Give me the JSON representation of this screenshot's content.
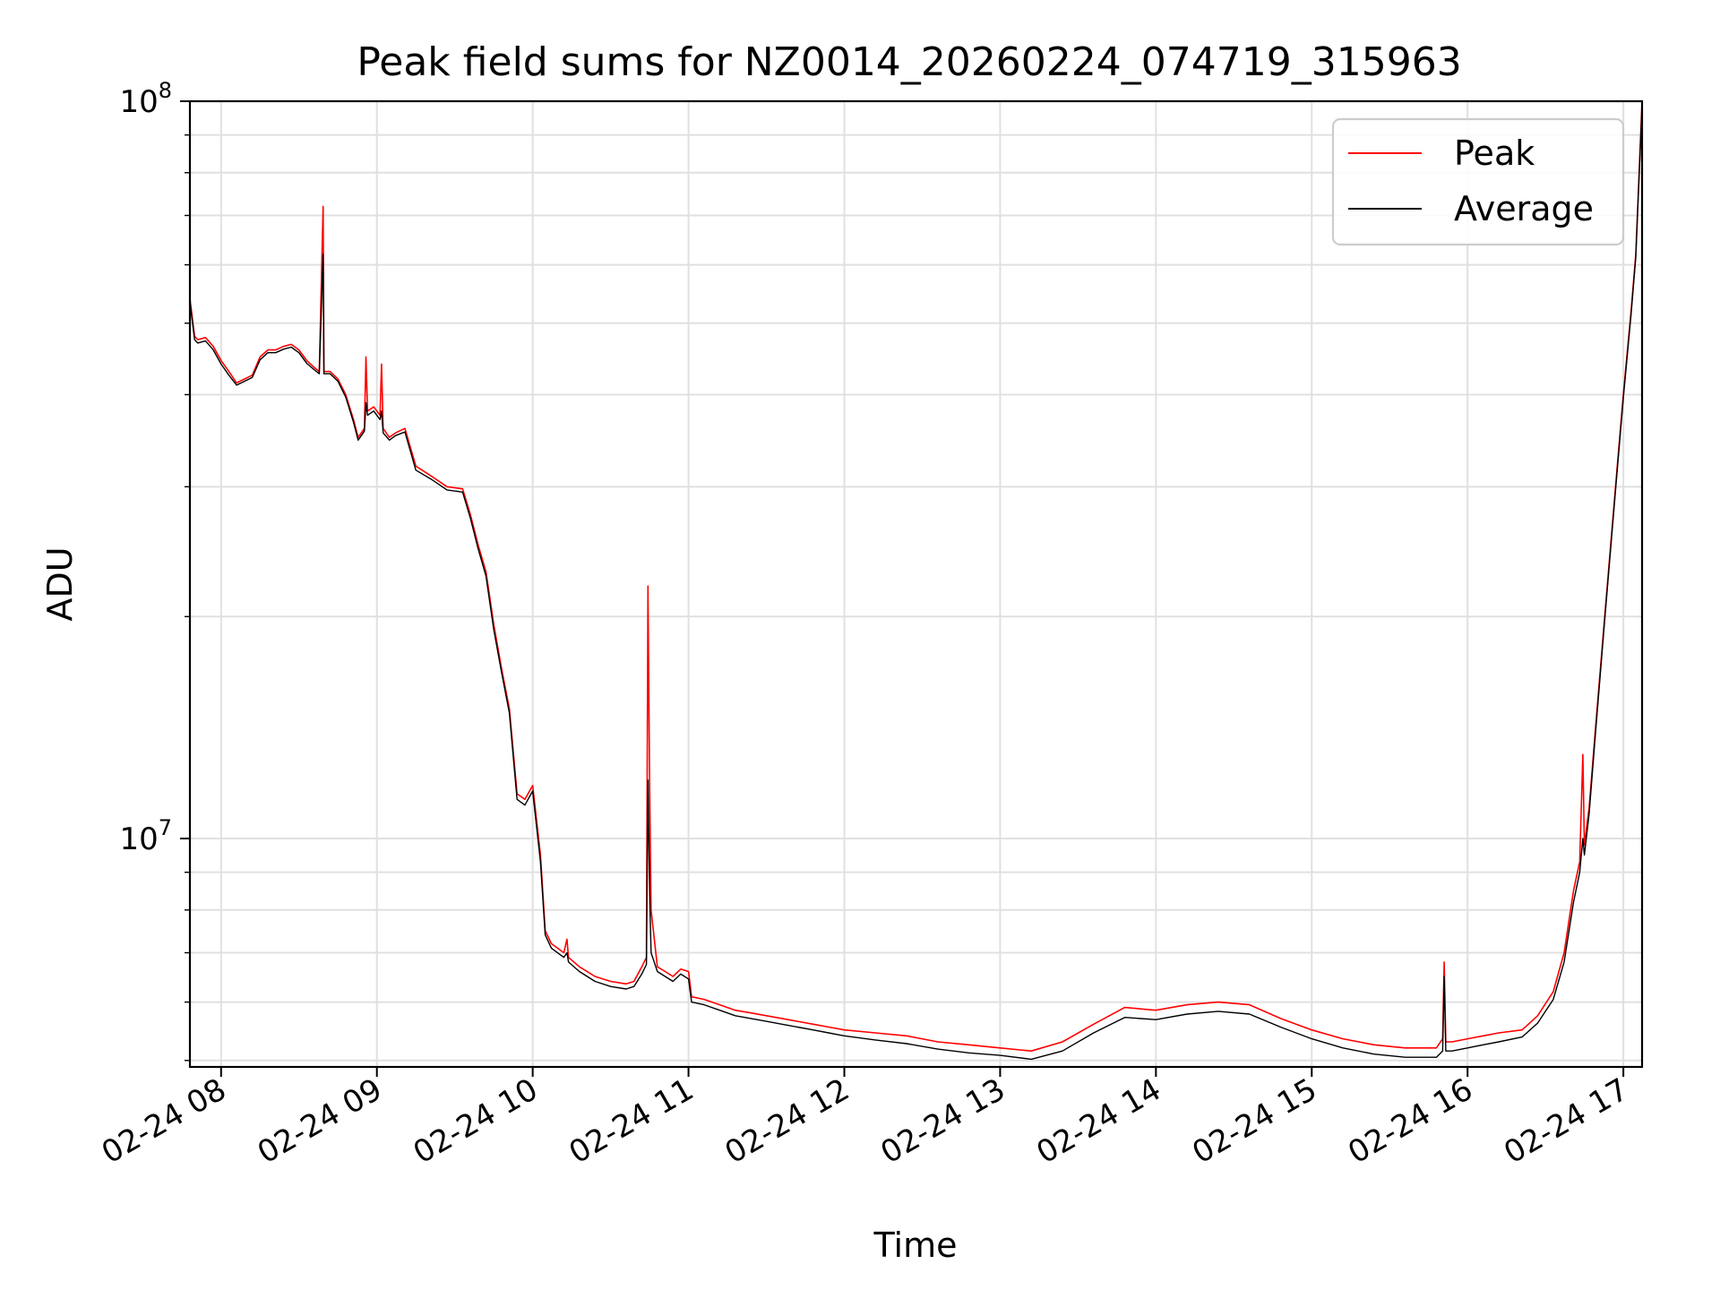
{
  "chart_data": {
    "type": "line",
    "title": "Peak field sums for NZ0014_20260224_074719_315963",
    "xlabel": "Time",
    "ylabel": "ADU",
    "yscale": "log",
    "ylim": [
      4900000,
      100000000
    ],
    "xlim_hours": [
      7.8,
      17.12
    ],
    "grid": true,
    "legend_position": "top-right",
    "x_ticks": [
      {
        "hour": 8,
        "label": "02-24 08"
      },
      {
        "hour": 9,
        "label": "02-24 09"
      },
      {
        "hour": 10,
        "label": "02-24 10"
      },
      {
        "hour": 11,
        "label": "02-24 11"
      },
      {
        "hour": 12,
        "label": "02-24 12"
      },
      {
        "hour": 13,
        "label": "02-24 13"
      },
      {
        "hour": 14,
        "label": "02-24 14"
      },
      {
        "hour": 15,
        "label": "02-24 15"
      },
      {
        "hour": 16,
        "label": "02-24 16"
      },
      {
        "hour": 17,
        "label": "02-24 17"
      }
    ],
    "y_major_ticks": [
      {
        "value": 10000000,
        "base": "10",
        "exp": "7"
      },
      {
        "value": 100000000,
        "base": "10",
        "exp": "8"
      }
    ],
    "series": [
      {
        "name": "Peak",
        "color": "#ff0000",
        "points": [
          [
            7.8,
            54000000
          ],
          [
            7.83,
            48000000
          ],
          [
            7.85,
            47500000
          ],
          [
            7.9,
            47800000
          ],
          [
            7.95,
            46500000
          ],
          [
            8.0,
            44500000
          ],
          [
            8.05,
            43000000
          ],
          [
            8.1,
            41500000
          ],
          [
            8.15,
            42000000
          ],
          [
            8.2,
            42500000
          ],
          [
            8.25,
            45000000
          ],
          [
            8.3,
            46000000
          ],
          [
            8.35,
            46000000
          ],
          [
            8.4,
            46500000
          ],
          [
            8.45,
            46800000
          ],
          [
            8.5,
            46000000
          ],
          [
            8.55,
            44500000
          ],
          [
            8.6,
            43500000
          ],
          [
            8.63,
            43000000
          ],
          [
            8.655,
            72000000
          ],
          [
            8.66,
            43000000
          ],
          [
            8.7,
            43000000
          ],
          [
            8.75,
            42000000
          ],
          [
            8.8,
            40000000
          ],
          [
            8.85,
            37000000
          ],
          [
            8.88,
            35000000
          ],
          [
            8.92,
            36000000
          ],
          [
            8.93,
            45000000
          ],
          [
            8.94,
            38000000
          ],
          [
            8.98,
            38500000
          ],
          [
            9.02,
            37500000
          ],
          [
            9.03,
            44000000
          ],
          [
            9.04,
            36000000
          ],
          [
            9.08,
            35000000
          ],
          [
            9.12,
            35500000
          ],
          [
            9.18,
            36000000
          ],
          [
            9.25,
            32000000
          ],
          [
            9.35,
            31000000
          ],
          [
            9.45,
            30000000
          ],
          [
            9.55,
            29800000
          ],
          [
            9.6,
            27500000
          ],
          [
            9.65,
            25000000
          ],
          [
            9.7,
            23000000
          ],
          [
            9.75,
            19500000
          ],
          [
            9.8,
            17000000
          ],
          [
            9.85,
            15000000
          ],
          [
            9.9,
            11500000
          ],
          [
            9.95,
            11300000
          ],
          [
            10.0,
            11800000
          ],
          [
            10.05,
            9500000
          ],
          [
            10.08,
            7500000
          ],
          [
            10.12,
            7200000
          ],
          [
            10.2,
            7000000
          ],
          [
            10.22,
            7300000
          ],
          [
            10.23,
            6900000
          ],
          [
            10.3,
            6700000
          ],
          [
            10.4,
            6500000
          ],
          [
            10.5,
            6400000
          ],
          [
            10.6,
            6350000
          ],
          [
            10.65,
            6400000
          ],
          [
            10.7,
            6700000
          ],
          [
            10.73,
            6900000
          ],
          [
            10.74,
            22000000
          ],
          [
            10.75,
            12000000
          ],
          [
            10.76,
            8000000
          ],
          [
            10.8,
            6700000
          ],
          [
            10.85,
            6600000
          ],
          [
            10.9,
            6500000
          ],
          [
            10.95,
            6650000
          ],
          [
            11.0,
            6600000
          ],
          [
            11.02,
            6100000
          ],
          [
            11.1,
            6050000
          ],
          [
            11.2,
            5950000
          ],
          [
            11.3,
            5850000
          ],
          [
            11.4,
            5800000
          ],
          [
            11.5,
            5750000
          ],
          [
            11.6,
            5700000
          ],
          [
            11.7,
            5650000
          ],
          [
            11.8,
            5600000
          ],
          [
            11.9,
            5550000
          ],
          [
            12.0,
            5500000
          ],
          [
            12.2,
            5450000
          ],
          [
            12.4,
            5400000
          ],
          [
            12.6,
            5300000
          ],
          [
            12.8,
            5250000
          ],
          [
            13.0,
            5200000
          ],
          [
            13.2,
            5150000
          ],
          [
            13.4,
            5300000
          ],
          [
            13.6,
            5600000
          ],
          [
            13.8,
            5900000
          ],
          [
            14.0,
            5850000
          ],
          [
            14.2,
            5950000
          ],
          [
            14.4,
            6000000
          ],
          [
            14.6,
            5950000
          ],
          [
            14.8,
            5700000
          ],
          [
            15.0,
            5500000
          ],
          [
            15.2,
            5350000
          ],
          [
            15.4,
            5250000
          ],
          [
            15.6,
            5200000
          ],
          [
            15.8,
            5200000
          ],
          [
            15.84,
            5350000
          ],
          [
            15.85,
            6800000
          ],
          [
            15.86,
            5300000
          ],
          [
            15.9,
            5300000
          ],
          [
            16.0,
            5350000
          ],
          [
            16.1,
            5400000
          ],
          [
            16.2,
            5450000
          ],
          [
            16.35,
            5500000
          ],
          [
            16.45,
            5750000
          ],
          [
            16.55,
            6200000
          ],
          [
            16.62,
            7000000
          ],
          [
            16.68,
            8500000
          ],
          [
            16.72,
            9300000
          ],
          [
            16.74,
            13000000
          ],
          [
            16.75,
            9800000
          ],
          [
            16.78,
            11000000
          ],
          [
            16.82,
            14000000
          ],
          [
            16.88,
            20000000
          ],
          [
            16.95,
            30000000
          ],
          [
            17.0,
            40000000
          ],
          [
            17.05,
            52000000
          ],
          [
            17.08,
            62000000
          ],
          [
            17.12,
            100000000
          ]
        ]
      },
      {
        "name": "Average",
        "color": "#000000",
        "points": [
          [
            7.8,
            53500000
          ],
          [
            7.83,
            47500000
          ],
          [
            7.85,
            47000000
          ],
          [
            7.9,
            47300000
          ],
          [
            7.95,
            46000000
          ],
          [
            8.0,
            44000000
          ],
          [
            8.05,
            42500000
          ],
          [
            8.1,
            41200000
          ],
          [
            8.15,
            41700000
          ],
          [
            8.2,
            42200000
          ],
          [
            8.25,
            44600000
          ],
          [
            8.3,
            45600000
          ],
          [
            8.35,
            45600000
          ],
          [
            8.4,
            46100000
          ],
          [
            8.45,
            46400000
          ],
          [
            8.5,
            45600000
          ],
          [
            8.55,
            44100000
          ],
          [
            8.6,
            43200000
          ],
          [
            8.63,
            42700000
          ],
          [
            8.655,
            62000000
          ],
          [
            8.66,
            42700000
          ],
          [
            8.7,
            42700000
          ],
          [
            8.75,
            41700000
          ],
          [
            8.8,
            39700000
          ],
          [
            8.85,
            36700000
          ],
          [
            8.88,
            34700000
          ],
          [
            8.92,
            35700000
          ],
          [
            8.93,
            39000000
          ],
          [
            8.94,
            37500000
          ],
          [
            8.98,
            38000000
          ],
          [
            9.02,
            37000000
          ],
          [
            9.03,
            38000000
          ],
          [
            9.04,
            35500000
          ],
          [
            9.08,
            34700000
          ],
          [
            9.12,
            35200000
          ],
          [
            9.18,
            35600000
          ],
          [
            9.25,
            31600000
          ],
          [
            9.35,
            30700000
          ],
          [
            9.45,
            29700000
          ],
          [
            9.55,
            29500000
          ],
          [
            9.6,
            27200000
          ],
          [
            9.65,
            24700000
          ],
          [
            9.7,
            22700000
          ],
          [
            9.75,
            19200000
          ],
          [
            9.8,
            16800000
          ],
          [
            9.85,
            14800000
          ],
          [
            9.9,
            11300000
          ],
          [
            9.95,
            11100000
          ],
          [
            10.0,
            11600000
          ],
          [
            10.05,
            9300000
          ],
          [
            10.08,
            7400000
          ],
          [
            10.12,
            7100000
          ],
          [
            10.2,
            6900000
          ],
          [
            10.22,
            7000000
          ],
          [
            10.23,
            6800000
          ],
          [
            10.3,
            6600000
          ],
          [
            10.4,
            6400000
          ],
          [
            10.5,
            6300000
          ],
          [
            10.6,
            6250000
          ],
          [
            10.65,
            6300000
          ],
          [
            10.7,
            6550000
          ],
          [
            10.73,
            6750000
          ],
          [
            10.74,
            12000000
          ],
          [
            10.75,
            8500000
          ],
          [
            10.76,
            7000000
          ],
          [
            10.8,
            6600000
          ],
          [
            10.85,
            6500000
          ],
          [
            10.9,
            6400000
          ],
          [
            10.95,
            6550000
          ],
          [
            11.0,
            6450000
          ],
          [
            11.02,
            6000000
          ],
          [
            11.1,
            5950000
          ],
          [
            11.2,
            5850000
          ],
          [
            11.3,
            5750000
          ],
          [
            11.4,
            5700000
          ],
          [
            11.5,
            5650000
          ],
          [
            11.6,
            5600000
          ],
          [
            11.7,
            5550000
          ],
          [
            11.8,
            5500000
          ],
          [
            11.9,
            5450000
          ],
          [
            12.0,
            5400000
          ],
          [
            12.2,
            5330000
          ],
          [
            12.4,
            5270000
          ],
          [
            12.6,
            5180000
          ],
          [
            12.8,
            5120000
          ],
          [
            13.0,
            5080000
          ],
          [
            13.2,
            5020000
          ],
          [
            13.4,
            5150000
          ],
          [
            13.6,
            5450000
          ],
          [
            13.8,
            5720000
          ],
          [
            14.0,
            5680000
          ],
          [
            14.2,
            5780000
          ],
          [
            14.4,
            5830000
          ],
          [
            14.6,
            5780000
          ],
          [
            14.8,
            5550000
          ],
          [
            15.0,
            5350000
          ],
          [
            15.2,
            5200000
          ],
          [
            15.4,
            5100000
          ],
          [
            15.6,
            5050000
          ],
          [
            15.8,
            5050000
          ],
          [
            15.84,
            5150000
          ],
          [
            15.85,
            6500000
          ],
          [
            15.86,
            5150000
          ],
          [
            15.9,
            5150000
          ],
          [
            16.0,
            5200000
          ],
          [
            16.1,
            5250000
          ],
          [
            16.2,
            5300000
          ],
          [
            16.35,
            5380000
          ],
          [
            16.45,
            5620000
          ],
          [
            16.55,
            6050000
          ],
          [
            16.62,
            6800000
          ],
          [
            16.68,
            8200000
          ],
          [
            16.72,
            9000000
          ],
          [
            16.74,
            10000000
          ],
          [
            16.75,
            9500000
          ],
          [
            16.78,
            10800000
          ],
          [
            16.82,
            13800000
          ],
          [
            16.88,
            19800000
          ],
          [
            16.95,
            29700000
          ],
          [
            17.0,
            39600000
          ],
          [
            17.05,
            51500000
          ],
          [
            17.08,
            61500000
          ],
          [
            17.12,
            99000000
          ]
        ]
      }
    ]
  }
}
